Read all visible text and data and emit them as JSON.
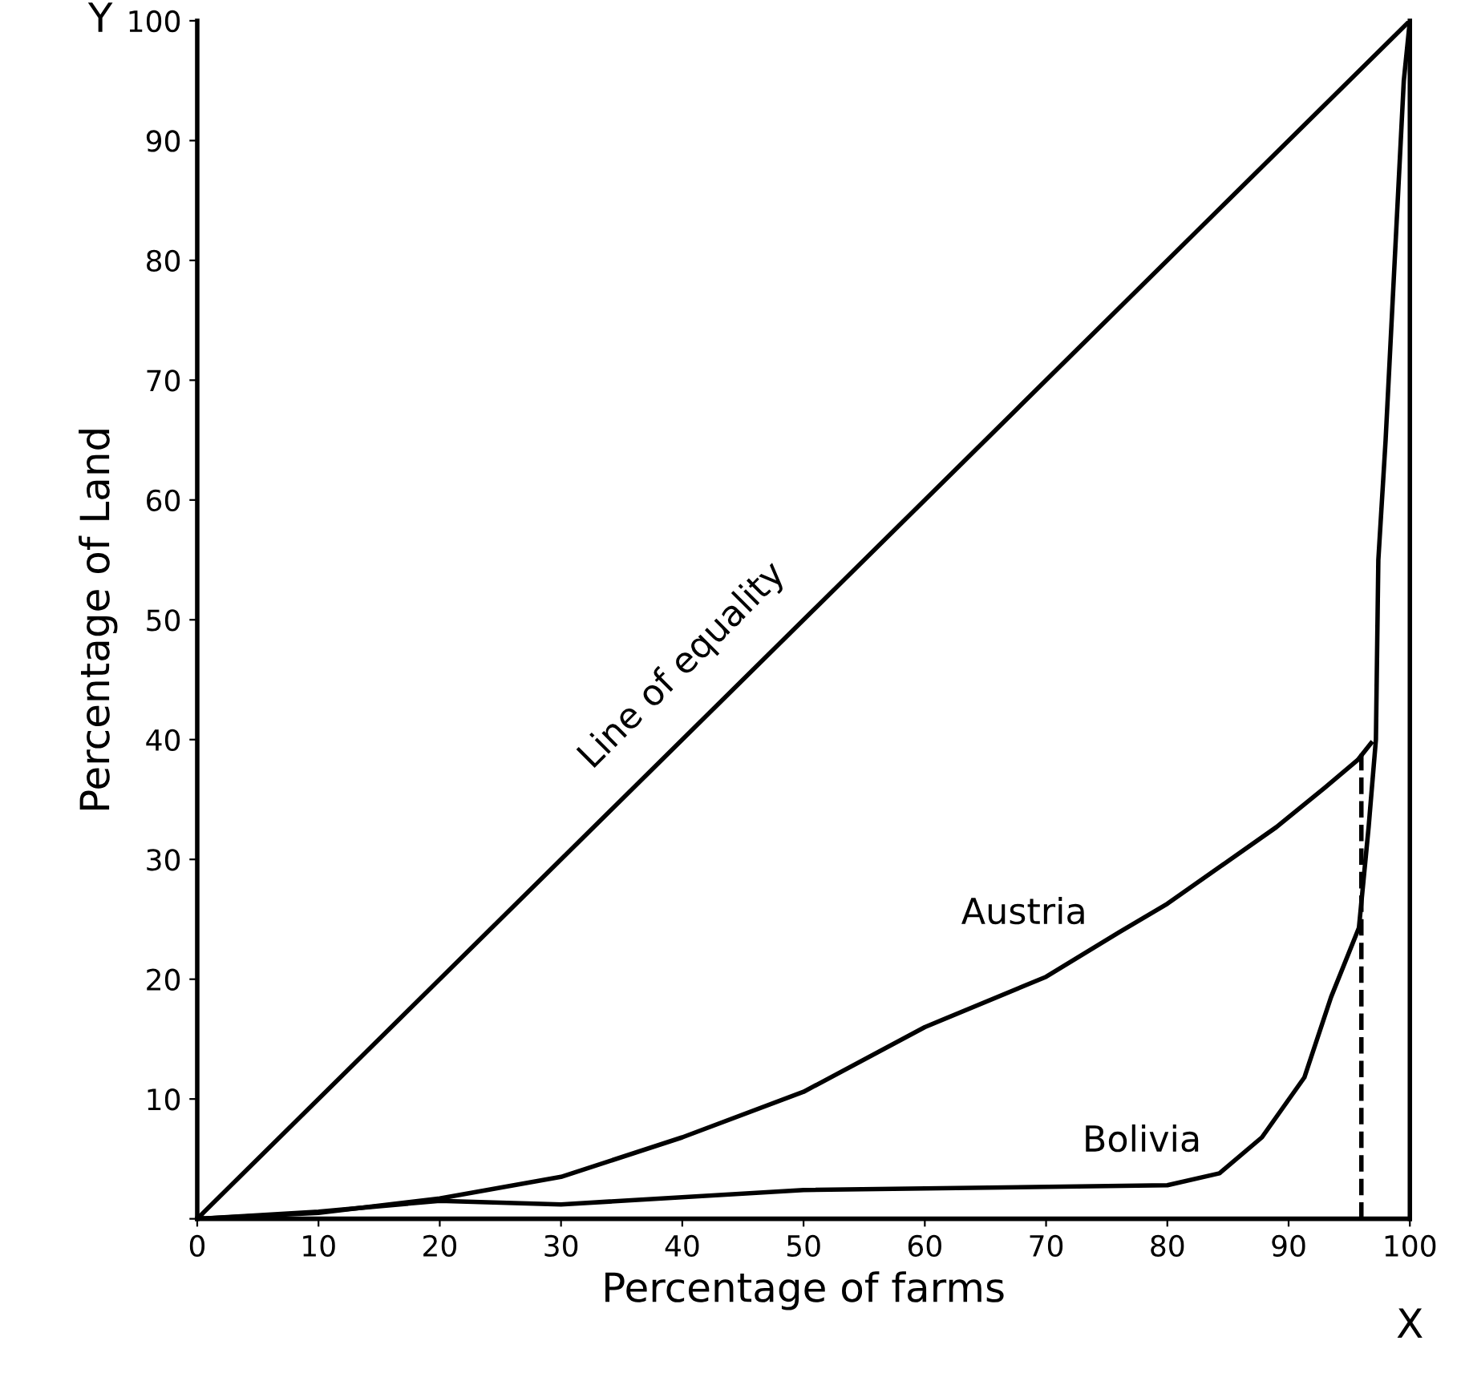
{
  "chart_data": {
    "type": "line",
    "xlabel": "Percentage of farms",
    "ylabel": "Percentage of Land",
    "xlim": [
      0,
      100
    ],
    "ylim": [
      0,
      100
    ],
    "xticks": [
      0,
      10,
      20,
      30,
      40,
      50,
      60,
      70,
      80,
      90,
      100
    ],
    "yticks": [
      {
        "value": 0,
        "label": null
      },
      10,
      20,
      30,
      40,
      50,
      60,
      70,
      80,
      90,
      100
    ],
    "grid": false,
    "legend": false,
    "marker": "none",
    "line_style": "solid",
    "series": [
      {
        "name": "Line of equality",
        "color": "#000000",
        "x": [
          0,
          100
        ],
        "values": [
          0,
          100
        ]
      },
      {
        "name": "Austria",
        "color": "#000000",
        "x": [
          0,
          10,
          20,
          30,
          40,
          50,
          60,
          70,
          76,
          80,
          89,
          93,
          95.7,
          96.8
        ],
        "values": [
          0,
          0.5,
          1.7,
          3.5,
          6.8,
          10.6,
          16,
          20.2,
          23.9,
          26.3,
          32.7,
          36,
          38.3,
          39.7
        ]
      },
      {
        "name": "Bolivia",
        "color": "#000000",
        "x": [
          0,
          10,
          20,
          30,
          50,
          80,
          84.3,
          87.8,
          91.3,
          93.5,
          95.8,
          96.6,
          97.2,
          97.4,
          98,
          98.5,
          99,
          99.5,
          100
        ],
        "values": [
          0,
          0.6,
          1.5,
          1.2,
          2.4,
          2.8,
          3.8,
          6.8,
          11.8,
          18.5,
          24.3,
          32.7,
          40,
          55,
          65,
          75,
          85,
          95,
          100
        ]
      },
      {
        "color": "#000000",
        "line_style": "dashed",
        "x": [
          96,
          96
        ],
        "values": [
          0,
          39
        ]
      }
    ],
    "annotations": [
      "Y",
      "X"
    ]
  }
}
